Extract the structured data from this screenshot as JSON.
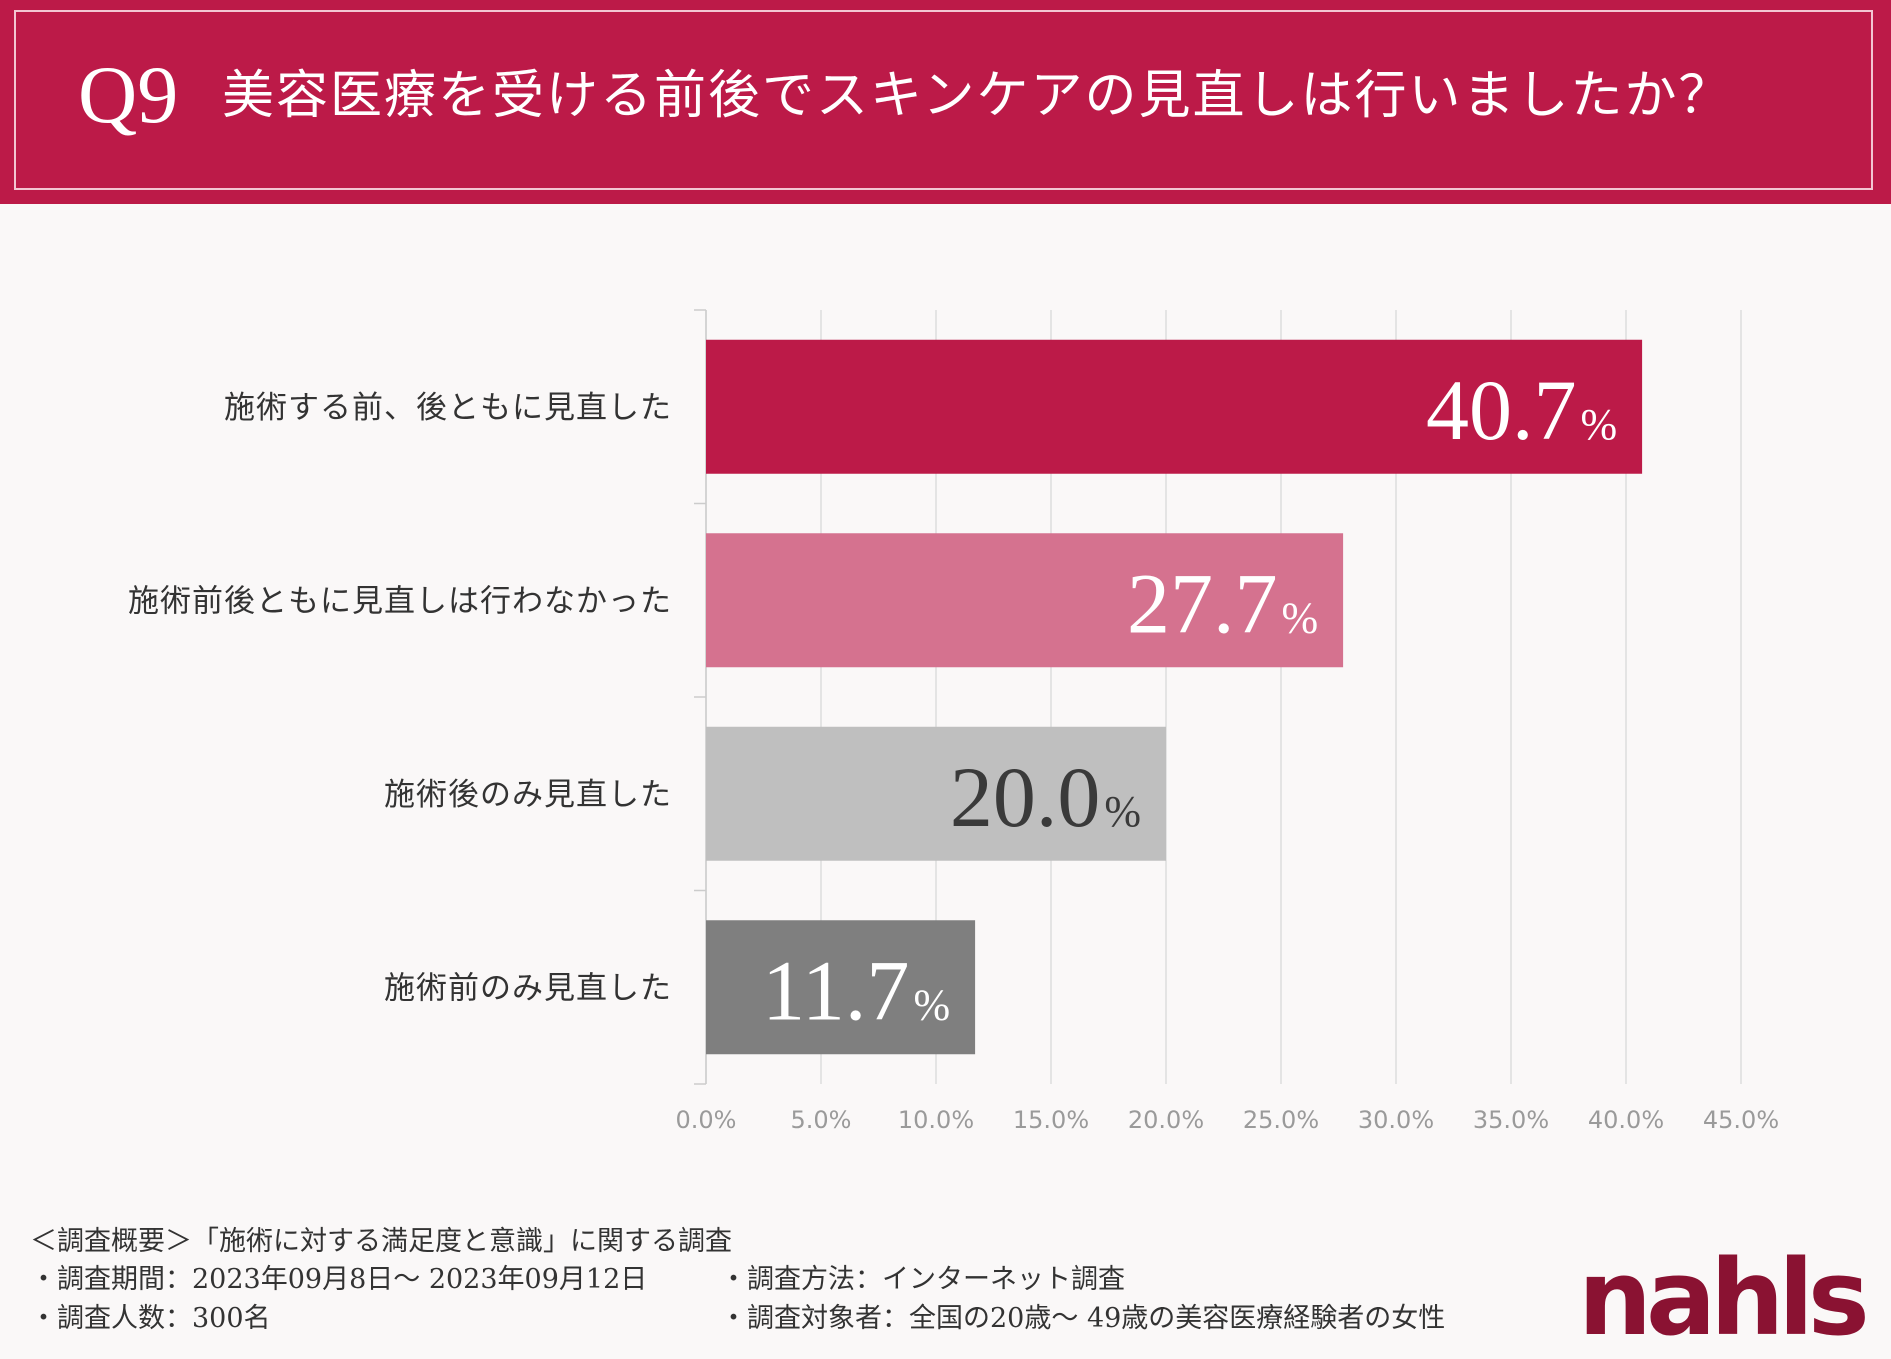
{
  "header": {
    "q_number": "Q9",
    "title": "美容医療を受ける前後でスキンケアの見直しは行いましたか？"
  },
  "chart_data": {
    "type": "bar",
    "orientation": "horizontal",
    "title": "美容医療を受ける前後でスキンケアの見直しは行いましたか？",
    "categories": [
      "施術する前、後ともに見直した",
      "施術前後ともに見直しは行わなかった",
      "施術後のみ見直した",
      "施術前のみ見直した"
    ],
    "values": [
      40.7,
      27.7,
      20.0,
      11.7
    ],
    "value_labels": [
      "40.7",
      "27.7",
      "20.0",
      "11.7"
    ],
    "unit": "%",
    "bar_colors": [
      "#bc1a48",
      "#d5728f",
      "#bfbfbf",
      "#7f7f7f"
    ],
    "label_colors": [
      "#ffffff",
      "#ffffff",
      "#3a3a3a",
      "#ffffff"
    ],
    "xlim": [
      0,
      45
    ],
    "xticks": [
      "0.0%",
      "5.0%",
      "10.0%",
      "15.0%",
      "20.0%",
      "25.0%",
      "30.0%",
      "35.0%",
      "40.0%",
      "45.0%"
    ],
    "grid": true
  },
  "footer": {
    "summary": "＜調査概要＞「施術に対する満足度と意識」に関する調査",
    "period": "・調査期間：2023年09月8日～ 2023年09月12日",
    "count": "・調査人数：300名",
    "method": "・調査方法：インターネット調査",
    "target": "・調査対象者：全国の20歳～ 49歳の美容医療経験者の女性"
  },
  "logo": {
    "text": "nahls",
    "color": "#8a1232"
  }
}
